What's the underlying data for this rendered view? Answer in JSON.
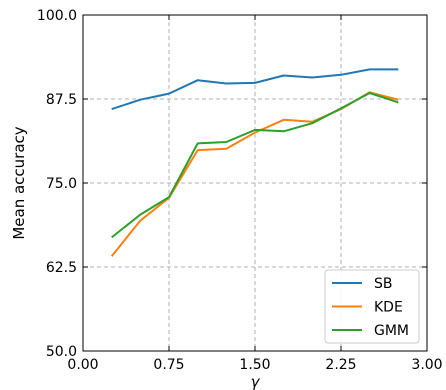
{
  "chart_data": {
    "type": "line",
    "xlabel": "γ",
    "ylabel": "Mean accuracy",
    "xlim": [
      0.0,
      3.0
    ],
    "ylim": [
      50.0,
      100.0
    ],
    "xticks": [
      0.0,
      0.75,
      1.5,
      2.25,
      3.0
    ],
    "xtick_labels": [
      "0.00",
      "0.75",
      "1.50",
      "2.25",
      "3.00"
    ],
    "yticks": [
      50.0,
      62.5,
      75.0,
      87.5,
      100.0
    ],
    "ytick_labels": [
      "50.0",
      "62.5",
      "75.0",
      "87.5",
      "100.0"
    ],
    "grid": "dashed",
    "legend_position": "lower-right",
    "x": [
      0.25,
      0.5,
      0.75,
      1.0,
      1.25,
      1.5,
      1.75,
      2.0,
      2.25,
      2.5,
      2.75
    ],
    "series": [
      {
        "name": "SB",
        "color": "#1f77b4",
        "values": [
          86.0,
          87.4,
          88.3,
          90.3,
          89.8,
          89.9,
          91.0,
          90.7,
          91.1,
          91.9,
          91.9
        ]
      },
      {
        "name": "KDE",
        "color": "#ff7f0e",
        "values": [
          64.1,
          69.4,
          72.8,
          79.9,
          80.1,
          82.5,
          84.4,
          84.1,
          86.0,
          88.5,
          87.4
        ]
      },
      {
        "name": "GMM",
        "color": "#2ca02c",
        "values": [
          66.9,
          70.3,
          72.9,
          80.9,
          81.1,
          82.9,
          82.7,
          83.9,
          86.1,
          88.4,
          87.0
        ]
      }
    ]
  }
}
